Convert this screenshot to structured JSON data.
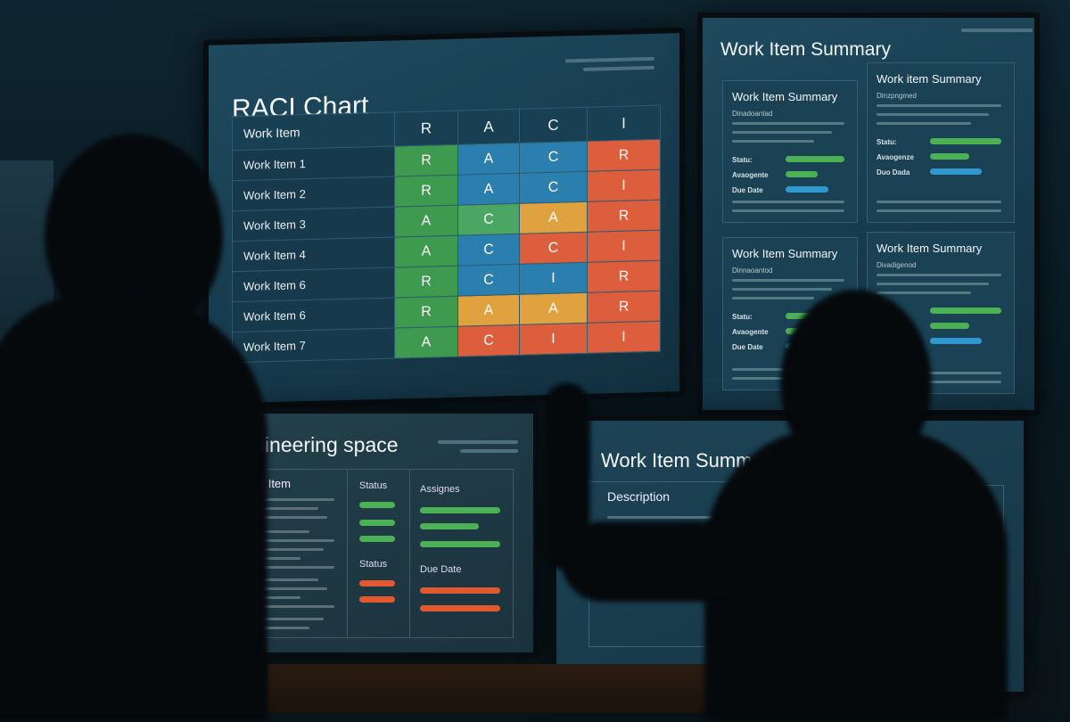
{
  "raci_screen": {
    "title": "RACI Chart",
    "headers": [
      "Work Item",
      "R",
      "A",
      "C",
      "I"
    ],
    "rows": [
      {
        "item": "Work Item 1",
        "cells": [
          [
            "R",
            "green"
          ],
          [
            "A",
            "blue"
          ],
          [
            "C",
            "blue"
          ],
          [
            "R",
            "red"
          ]
        ]
      },
      {
        "item": "Work Item 2",
        "cells": [
          [
            "R",
            "green"
          ],
          [
            "A",
            "blue"
          ],
          [
            "C",
            "blue"
          ],
          [
            "I",
            "red"
          ]
        ]
      },
      {
        "item": "Work Item 3",
        "cells": [
          [
            "A",
            "green"
          ],
          [
            "C",
            "lightgreen"
          ],
          [
            "A",
            "amber"
          ],
          [
            "R",
            "red"
          ]
        ]
      },
      {
        "item": "Work Item 4",
        "cells": [
          [
            "A",
            "green"
          ],
          [
            "C",
            "blue"
          ],
          [
            "C",
            "red"
          ],
          [
            "I",
            "red"
          ]
        ]
      },
      {
        "item": "Work Item 6",
        "cells": [
          [
            "R",
            "green"
          ],
          [
            "C",
            "blue"
          ],
          [
            "I",
            "blue"
          ],
          [
            "R",
            "red"
          ]
        ]
      },
      {
        "item": "Work Item 6",
        "cells": [
          [
            "R",
            "green"
          ],
          [
            "A",
            "amber"
          ],
          [
            "A",
            "amber"
          ],
          [
            "R",
            "red"
          ]
        ]
      },
      {
        "item": "Work Item 7",
        "cells": [
          [
            "A",
            "green"
          ],
          [
            "C",
            "red"
          ],
          [
            "I",
            "red"
          ],
          [
            "I",
            "red"
          ]
        ]
      }
    ]
  },
  "colors": {
    "green": "#3d9a4f",
    "lightgreen": "#4aa662",
    "blue": "#2a7fae",
    "amber": "#e0a23e",
    "red": "#dd5e3c"
  },
  "summary_screen": {
    "title": "Work Item Summary",
    "cards": [
      {
        "title": "Work Item Summary",
        "subtitle": "Dinadoantad",
        "status": "Statu:",
        "assignee": "Avaogente",
        "due": "Due Date"
      },
      {
        "title": "Work item Summary",
        "subtitle": "Dinzpngmed",
        "status": "Statu:",
        "assignee": "Avaogenze",
        "due": "Duo Dada"
      },
      {
        "title": "Work Item Summary",
        "subtitle": "Dinnaoantod",
        "status": "Statu:",
        "assignee": "Avaogente",
        "due": "Due Date"
      },
      {
        "title": "Work Item Summary",
        "subtitle": "Divadigenod",
        "status": "",
        "assignee": "",
        "due": ""
      }
    ]
  },
  "engineering_screen": {
    "title": "Engineering space",
    "col_work_item": "Work Item",
    "col_status": "Status",
    "col_assignees": "Assignes",
    "col_status2": "Status",
    "col_due_date": "Due Date"
  },
  "detail_screen": {
    "title": "Work Item Summary",
    "description_label": "Description"
  }
}
